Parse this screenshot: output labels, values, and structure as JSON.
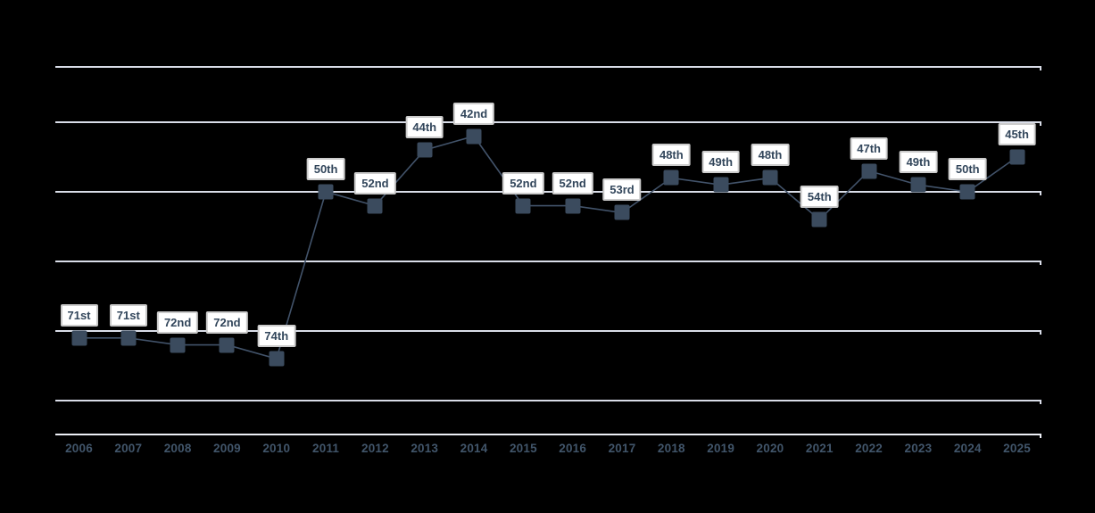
{
  "chart_data": {
    "type": "line",
    "title": "",
    "categories": [
      "2006",
      "2007",
      "2008",
      "2009",
      "2010",
      "2011",
      "2012",
      "2013",
      "2014",
      "2015",
      "2016",
      "2017",
      "2018",
      "2019",
      "2020",
      "2021",
      "2022",
      "2023",
      "2024",
      "2025"
    ],
    "values": [
      71,
      71,
      72,
      72,
      74,
      50,
      52,
      44,
      42,
      52,
      52,
      53,
      48,
      49,
      48,
      54,
      47,
      49,
      50,
      45
    ],
    "point_labels": [
      "71st",
      "71st",
      "72nd",
      "72nd",
      "74th",
      "50th",
      "52nd",
      "44th",
      "42nd",
      "52nd",
      "52nd",
      "53rd",
      "48th",
      "49th",
      "48th",
      "54th",
      "47th",
      "49th",
      "50th",
      "45th"
    ],
    "xlabel": "",
    "ylabel": "",
    "y_axis": {
      "inverted": true,
      "gridline_values": [
        40,
        50,
        60,
        70,
        80
      ],
      "tick_labels_visible": false
    },
    "grid": true,
    "legend": false
  },
  "colors": {
    "background": "#000000",
    "gridline": "#d9dde8",
    "axis_line": "#edeff6",
    "series_line": "#42536a",
    "marker": "#3b4b5e",
    "label_box_bg": "#ffffff",
    "label_box_border": "#cbcbcb",
    "label_text": "#32465b",
    "x_label_text": "#41556a"
  }
}
